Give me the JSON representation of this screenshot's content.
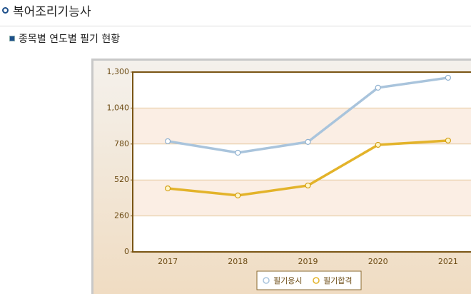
{
  "header": {
    "title": "복어조리기능사",
    "subtitle": "종목별 연도별 필기 현황"
  },
  "chart_data": {
    "type": "line",
    "categories": [
      "2017",
      "2018",
      "2019",
      "2020",
      "2021"
    ],
    "series": [
      {
        "name": "필기응시",
        "color": "#a9c4dc",
        "values": [
          800,
          717,
          795,
          1187,
          1259
        ]
      },
      {
        "name": "필기합격",
        "color": "#e3b32a",
        "values": [
          459,
          408,
          480,
          774,
          805
        ]
      }
    ],
    "ylim": [
      0,
      1300
    ],
    "yticks": [
      0,
      260,
      520,
      780,
      {
        "value": 1040,
        "label": "1,040"
      },
      {
        "value": 1300,
        "label": "1,300"
      }
    ],
    "grid": true,
    "legend": "bottom"
  }
}
